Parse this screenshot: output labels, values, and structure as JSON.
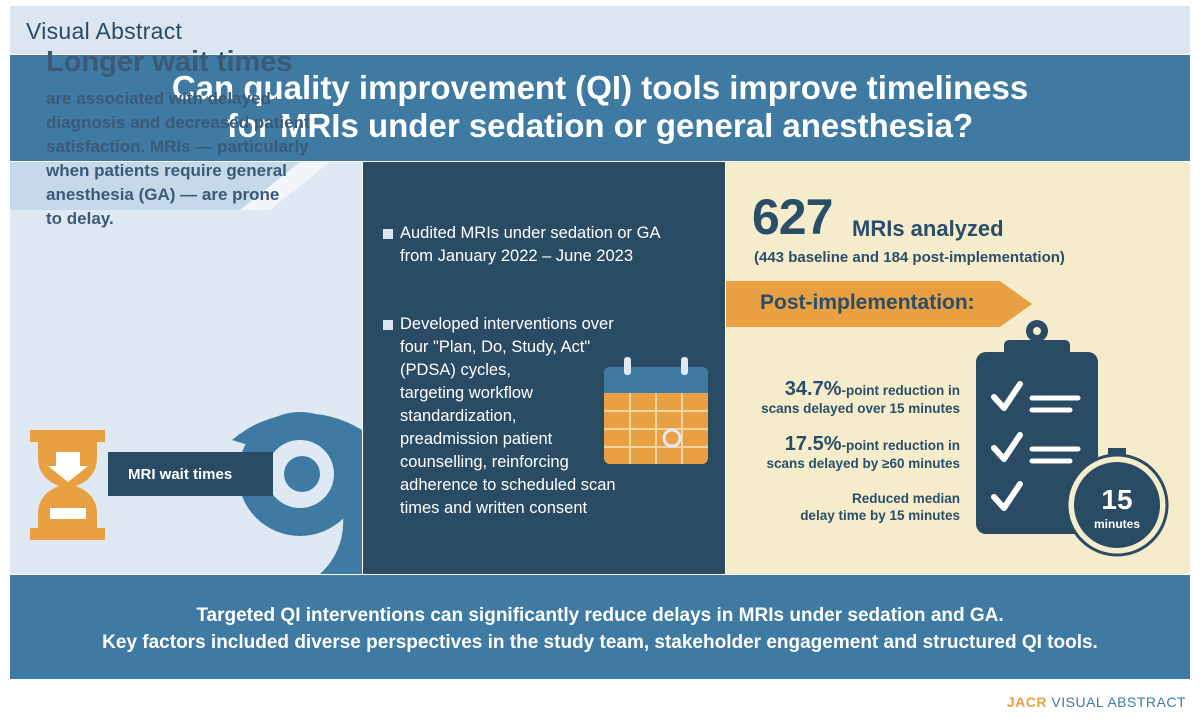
{
  "banner": {
    "label": "Visual Abstract"
  },
  "header": {
    "question_line1": "Can quality improvement (QI) tools improve timeliness",
    "question_line2": "for MRIs under sedation or general anesthesia?"
  },
  "left_panel": {
    "title": "Longer wait times",
    "lines": [
      "are associated with delayed",
      "diagnosis and decreased patient",
      "satisfaction. MRIs — particularly",
      "when patients require general",
      "anesthesia (GA) — are prone",
      "to delay."
    ],
    "scanner_label": "MRI wait times",
    "icons": [
      "hourglass-icon",
      "mri-scanner-icon"
    ]
  },
  "middle_panel": {
    "bullet1_lines": [
      "Audited MRIs under sedation or GA",
      "from January 2022 – June 2023"
    ],
    "bullet2_lines": [
      "Developed interventions over",
      "four \"Plan, Do, Study, Act\"",
      "(PDSA) cycles,",
      "targeting workflow",
      "standardization,",
      "preadmission patient",
      "counselling, reinforcing",
      "adherence to scheduled scan",
      "times and written consent"
    ],
    "icons": [
      "calendar-icon"
    ]
  },
  "right_panel": {
    "count": "627",
    "count_label": "MRIs analyzed",
    "count_sub": "(443 baseline and 184 post-implementation)",
    "arrow_label": "Post-implementation:",
    "stats": [
      {
        "pct": "34.7%",
        "rest": "-point reduction in",
        "line2": "scans delayed over 15 minutes"
      },
      {
        "pct": "17.5%",
        "rest": "-point reduction in",
        "line2": "scans delayed by ≥60 minutes"
      },
      {
        "pct": "",
        "rest": "Reduced median",
        "line2": "delay time by 15 minutes"
      }
    ],
    "timer_value": "15",
    "timer_unit": "minutes",
    "icons": [
      "clipboard-checklist-icon",
      "stopwatch-icon"
    ]
  },
  "conclusion": {
    "line1": "Targeted QI interventions can significantly reduce delays in MRIs under sedation and GA.",
    "line2": "Key factors included diverse perspectives in the study team, stakeholder engagement and structured QI tools."
  },
  "footer": {
    "brand_bold": "JACR",
    "brand_rest": " VISUAL ABSTRACT"
  },
  "colors": {
    "navy": "#294b63",
    "blue": "#3f7aa3",
    "light_blue": "#dfe9f3",
    "cream": "#f5eccb",
    "orange": "#e8a042"
  }
}
